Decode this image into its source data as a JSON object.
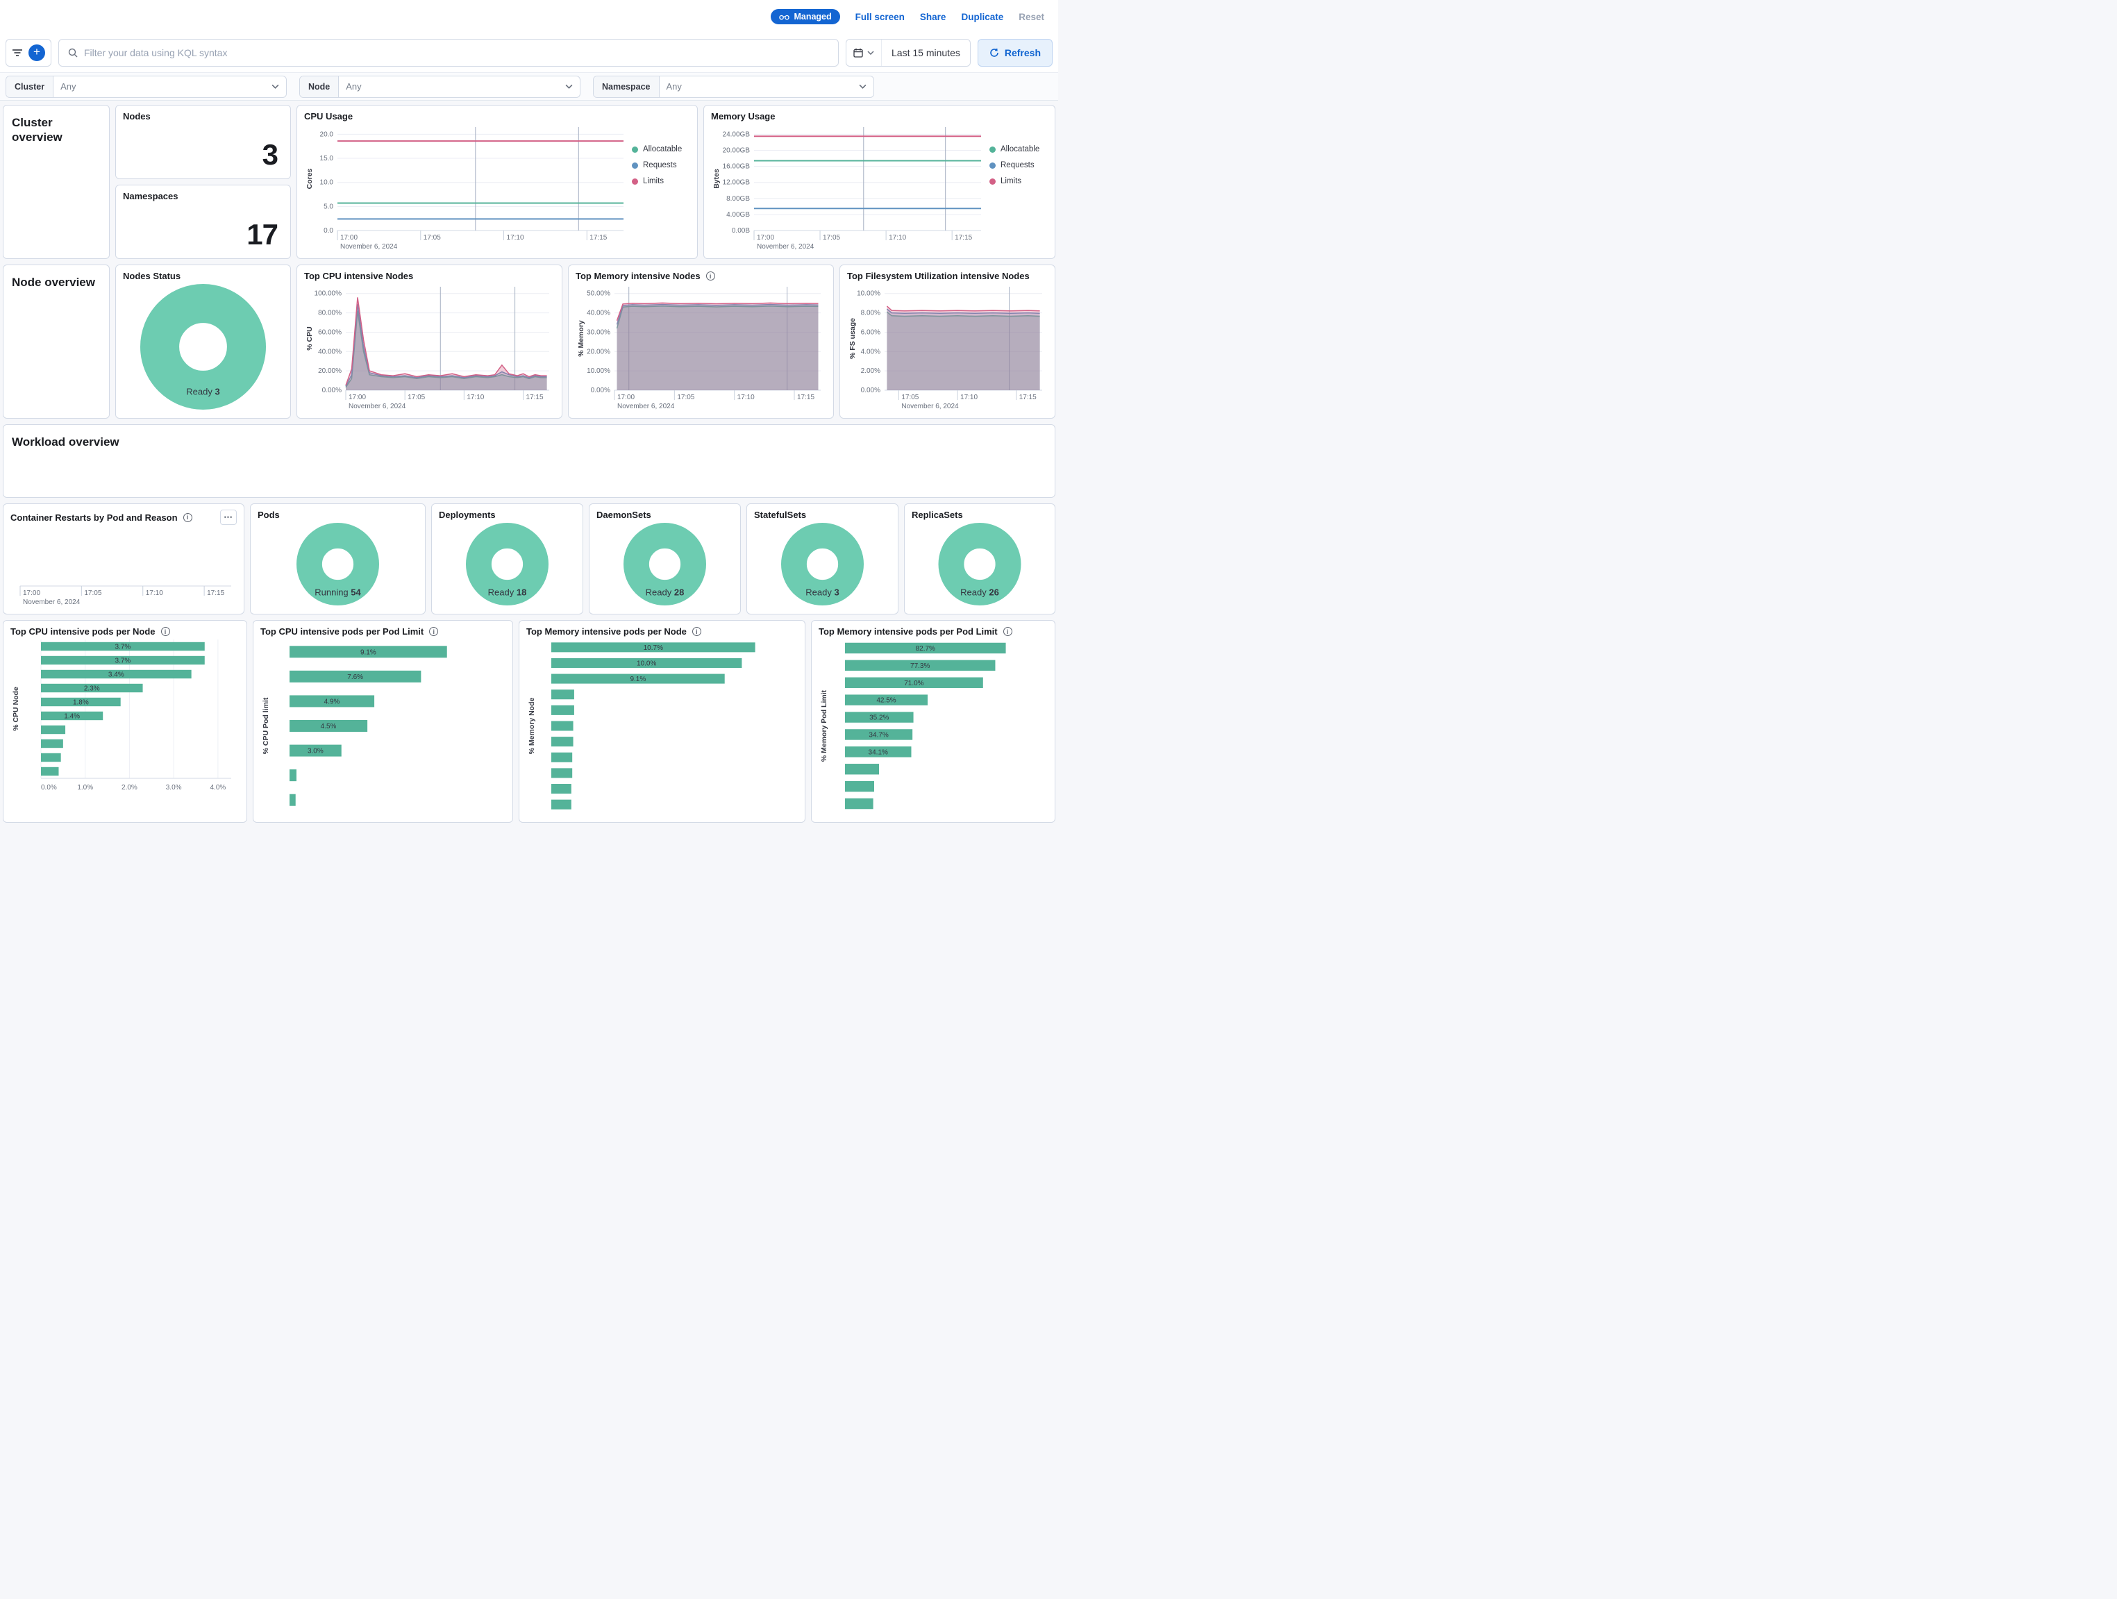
{
  "header": {
    "managed": "Managed",
    "full_screen": "Full screen",
    "share": "Share",
    "duplicate": "Duplicate",
    "reset": "Reset"
  },
  "toolbar": {
    "search_placeholder": "Filter your data using KQL syntax",
    "time_range": "Last 15 minutes",
    "refresh": "Refresh"
  },
  "filters": {
    "cluster_label": "Cluster",
    "cluster_value": "Any",
    "node_label": "Node",
    "node_value": "Any",
    "namespace_label": "Namespace",
    "namespace_value": "Any"
  },
  "panels": {
    "cluster_overview_title": "Cluster overview",
    "node_overview_title": "Node overview",
    "workload_overview_title": "Workload overview",
    "nodes": {
      "title": "Nodes",
      "value": "3"
    },
    "namespaces": {
      "title": "Namespaces",
      "value": "17"
    },
    "cpu_usage_title": "CPU Usage",
    "memory_usage_title": "Memory Usage",
    "nodes_status_title": "Nodes Status",
    "top_cpu_nodes_title": "Top CPU intensive Nodes",
    "top_memory_nodes_title": "Top Memory intensive Nodes",
    "top_fs_nodes_title": "Top Filesystem Utilization intensive Nodes",
    "container_restarts_title": "Container Restarts by Pod and Reason",
    "pods_title": "Pods",
    "deployments_title": "Deployments",
    "daemonsets_title": "DaemonSets",
    "statefulsets_title": "StatefulSets",
    "replicasets_title": "ReplicaSets",
    "top_cpu_pods_node_title": "Top CPU intensive pods per Node",
    "top_cpu_pods_limit_title": "Top CPU intensive pods per Pod Limit",
    "top_mem_pods_node_title": "Top Memory intensive pods per Node",
    "top_mem_pods_limit_title": "Top Memory intensive pods per Pod Limit"
  },
  "colors": {
    "accent_blue": "#1365D2",
    "donut_green": "#6DCCB1",
    "bar_green": "#54B399",
    "series_green": "#54B399",
    "series_blue": "#6092C0",
    "series_pink": "#D36086"
  },
  "chart_data": {
    "cpu_usage": {
      "type": "line",
      "ylabel": "Cores",
      "mleft": 48,
      "yticks": [
        0,
        5,
        10,
        15,
        20
      ],
      "ytick_labels": [
        "0.0",
        "5.0",
        "10.0",
        "15.0",
        "20.0"
      ],
      "ylim": [
        0,
        21.5
      ],
      "xlim": [
        0,
        17.2
      ],
      "xticks": [
        0,
        5,
        10,
        15
      ],
      "xtick_labels": [
        "17:00",
        "17:05",
        "17:10",
        "17:15"
      ],
      "date_label": "November 6, 2024",
      "vlines": [
        8.3,
        14.5
      ],
      "series": [
        {
          "name": "Allocatable",
          "color": "#54B399",
          "value": 5.7
        },
        {
          "name": "Requests",
          "color": "#6092C0",
          "value": 2.4
        },
        {
          "name": "Limits",
          "color": "#D36086",
          "value": 18.6
        }
      ]
    },
    "memory_usage": {
      "type": "line",
      "ylabel": "Bytes",
      "mleft": 62,
      "yticks": [
        0,
        4,
        8,
        12,
        16,
        20,
        24
      ],
      "ytick_labels": [
        "0.00B",
        "4.00GB",
        "8.00GB",
        "12.00GB",
        "16.00GB",
        "20.00GB",
        "24.00GB"
      ],
      "ylim": [
        0,
        25.8
      ],
      "xlim": [
        0,
        17.2
      ],
      "xticks": [
        0,
        5,
        10,
        15
      ],
      "xtick_labels": [
        "17:00",
        "17:05",
        "17:10",
        "17:15"
      ],
      "date_label": "November 6, 2024",
      "vlines": [
        8.3,
        14.5
      ],
      "series": [
        {
          "name": "Allocatable",
          "color": "#54B399",
          "value": 17.4
        },
        {
          "name": "Requests",
          "color": "#6092C0",
          "value": 5.5
        },
        {
          "name": "Limits",
          "color": "#D36086",
          "value": 23.5
        }
      ]
    },
    "top_cpu_nodes": {
      "type": "area",
      "ylabel": "% CPU",
      "mleft": 60,
      "yticks": [
        0,
        20,
        40,
        60,
        80,
        100
      ],
      "ytick_labels": [
        "0.00%",
        "20.00%",
        "40.00%",
        "60.00%",
        "80.00%",
        "100.00%"
      ],
      "ylim": [
        0,
        107
      ],
      "xlim": [
        0,
        17.2
      ],
      "xticks": [
        0,
        5,
        10,
        15
      ],
      "xtick_labels": [
        "17:00",
        "17:05",
        "17:10",
        "17:15"
      ],
      "date_label": "November 6, 2024",
      "vlines": [
        8.0,
        14.3
      ],
      "area": true,
      "series": [
        {
          "color": "#54B399",
          "x": [
            0,
            0.5,
            1,
            1.5,
            2,
            3,
            4,
            5,
            6,
            7,
            8,
            9,
            10,
            11,
            12,
            12.6,
            13.2,
            13.8,
            14.5,
            15,
            15.5,
            16,
            16.5,
            17
          ],
          "y": [
            3,
            12,
            82,
            40,
            16,
            14,
            13,
            14,
            12,
            14,
            13,
            14,
            12,
            14,
            13,
            14,
            16,
            14,
            13,
            14,
            12,
            14,
            13,
            13
          ]
        },
        {
          "color": "#6092C0",
          "x": [
            0,
            0.5,
            1,
            1.5,
            2,
            3,
            4,
            5,
            6,
            7,
            8,
            9,
            10,
            11,
            12,
            12.6,
            13.2,
            13.8,
            14.5,
            15,
            15.5,
            16,
            16.5,
            17
          ],
          "y": [
            4,
            16,
            89,
            45,
            18,
            15,
            14,
            15,
            13,
            15,
            14,
            15,
            13,
            15,
            14,
            15,
            19,
            16,
            14,
            15,
            13,
            15,
            14,
            14
          ]
        },
        {
          "color": "#D36086",
          "x": [
            0,
            0.5,
            1,
            1.5,
            2,
            3,
            4,
            5,
            6,
            7,
            8,
            9,
            10,
            11,
            12,
            12.6,
            13.2,
            13.8,
            14.5,
            15,
            15.5,
            16,
            16.5,
            17
          ],
          "y": [
            5,
            22,
            96,
            52,
            20,
            16,
            15,
            17,
            14,
            16,
            15,
            17,
            14,
            16,
            15,
            16,
            26,
            17,
            15,
            17,
            14,
            16,
            15,
            15
          ]
        }
      ]
    },
    "top_memory_nodes": {
      "type": "area",
      "ylabel": "% Memory",
      "mleft": 56,
      "yticks": [
        0,
        10,
        20,
        30,
        40,
        50
      ],
      "ytick_labels": [
        "0.00%",
        "10.00%",
        "20.00%",
        "30.00%",
        "40.00%",
        "50.00%"
      ],
      "ylim": [
        0,
        53.5
      ],
      "xlim": [
        0,
        17.2
      ],
      "xticks": [
        0,
        5,
        10,
        15
      ],
      "xtick_labels": [
        "17:00",
        "17:05",
        "17:10",
        "17:15"
      ],
      "date_label": "November 6, 2024",
      "vlines": [
        1.2,
        14.4
      ],
      "area": true,
      "series": [
        {
          "color": "#54B399",
          "x": [
            0.2,
            0.7,
            1.5,
            2.5,
            4,
            5.5,
            7,
            8.5,
            10,
            11.5,
            13,
            14.5,
            16,
            17
          ],
          "y": [
            32,
            43,
            43.4,
            43.2,
            43.5,
            43.2,
            43.4,
            43.1,
            43.4,
            43.2,
            43.5,
            43.2,
            43.4,
            43.3
          ]
        },
        {
          "color": "#6092C0",
          "x": [
            0.2,
            0.7,
            1.5,
            2.5,
            4,
            5.5,
            7,
            8.5,
            10,
            11.5,
            13,
            14.5,
            16,
            17
          ],
          "y": [
            34,
            43.8,
            44.2,
            44,
            44.3,
            44,
            44.2,
            43.9,
            44.2,
            44,
            44.3,
            44,
            44.2,
            44.1
          ]
        },
        {
          "color": "#D36086",
          "x": [
            0.2,
            0.7,
            1.5,
            2.5,
            4,
            5.5,
            7,
            8.5,
            10,
            11.5,
            13,
            14.5,
            16,
            17
          ],
          "y": [
            36,
            44.6,
            45,
            44.8,
            45.1,
            44.8,
            45,
            44.7,
            45,
            44.8,
            45.1,
            44.8,
            45,
            44.9
          ]
        }
      ]
    },
    "top_fs_nodes": {
      "type": "area",
      "ylabel": "% FS usage",
      "mleft": 54,
      "yticks": [
        0,
        2,
        4,
        6,
        8,
        10
      ],
      "ytick_labels": [
        "0.00%",
        "2.00%",
        "4.00%",
        "6.00%",
        "8.00%",
        "10.00%"
      ],
      "ylim": [
        0,
        10.7
      ],
      "xlim": [
        3.8,
        17.2
      ],
      "xticks": [
        5,
        10,
        15
      ],
      "xtick_labels": [
        "17:05",
        "17:10",
        "17:15"
      ],
      "date_label": "November 6, 2024",
      "vlines": [
        14.4
      ],
      "area": true,
      "series": [
        {
          "color": "#54B399",
          "x": [
            4,
            4.4,
            5.5,
            7,
            8.5,
            10,
            11.5,
            13,
            14.5,
            16,
            17
          ],
          "y": [
            8.1,
            7.7,
            7.65,
            7.7,
            7.65,
            7.7,
            7.65,
            7.7,
            7.65,
            7.7,
            7.65
          ]
        },
        {
          "color": "#6092C0",
          "x": [
            4,
            4.4,
            5.5,
            7,
            8.5,
            10,
            11.5,
            13,
            14.5,
            16,
            17
          ],
          "y": [
            8.4,
            8.0,
            7.95,
            8.0,
            7.95,
            8.0,
            7.95,
            8.0,
            7.95,
            8.0,
            7.95
          ]
        },
        {
          "color": "#D36086",
          "x": [
            4,
            4.4,
            5.5,
            7,
            8.5,
            10,
            11.5,
            13,
            14.5,
            16,
            17
          ],
          "y": [
            8.7,
            8.25,
            8.2,
            8.25,
            8.2,
            8.25,
            8.2,
            8.25,
            8.2,
            8.25,
            8.2
          ]
        }
      ]
    },
    "container_restarts": {
      "type": "line",
      "mleft": 14,
      "yticks": [],
      "ytick_labels": [],
      "ylim": [
        0,
        1
      ],
      "xlim": [
        0,
        17.2
      ],
      "xticks": [
        0,
        5,
        10,
        15
      ],
      "xtick_labels": [
        "17:00",
        "17:05",
        "17:10",
        "17:15"
      ],
      "date_label": "November 6, 2024",
      "series": []
    },
    "nodes_status": {
      "type": "donut",
      "label": "Ready",
      "value": "3",
      "color": "#6DCCB1"
    },
    "pods": {
      "type": "donut",
      "label": "Running",
      "value": "54",
      "color": "#6DCCB1"
    },
    "deployments": {
      "type": "donut",
      "label": "Ready",
      "value": "18",
      "color": "#6DCCB1"
    },
    "daemonsets": {
      "type": "donut",
      "label": "Ready",
      "value": "28",
      "color": "#6DCCB1"
    },
    "statefulsets": {
      "type": "donut",
      "label": "Ready",
      "value": "3",
      "color": "#6DCCB1"
    },
    "replicasets": {
      "type": "donut",
      "label": "Ready",
      "value": "26",
      "color": "#6DCCB1"
    },
    "top_cpu_pods_node": {
      "type": "bar",
      "ylabel": "% CPU Node",
      "mleft": 44,
      "color": "#54B399",
      "xmax": 4.3,
      "xticks": [
        0,
        1,
        2,
        3,
        4
      ],
      "xtick_labels": [
        "0.0%",
        "1.0%",
        "2.0%",
        "3.0%",
        "4.0%"
      ],
      "values": [
        3.7,
        3.7,
        3.4,
        2.3,
        1.8,
        1.4,
        0.55,
        0.5,
        0.45,
        0.4
      ],
      "labels": [
        "3.7%",
        "3.7%",
        "3.4%",
        "2.3%",
        "1.8%",
        "1.4%",
        "",
        "",
        "",
        ""
      ]
    },
    "top_cpu_pods_limit": {
      "type": "bar",
      "ylabel": "% CPU Pod limit",
      "mleft": 42,
      "color": "#54B399",
      "xmax": 12,
      "values": [
        9.1,
        7.6,
        4.9,
        4.5,
        3.0,
        0.4,
        0.35
      ],
      "labels": [
        "9.1%",
        "7.6%",
        "4.9%",
        "4.5%",
        "3.0%",
        "",
        ""
      ]
    },
    "top_mem_pods_node": {
      "type": "bar",
      "ylabel": "% Memory Node",
      "mleft": 36,
      "color": "#54B399",
      "xmax": 12.5,
      "values": [
        10.7,
        10.0,
        9.1,
        1.2,
        1.2,
        1.15,
        1.15,
        1.1,
        1.1,
        1.05,
        1.05
      ],
      "labels": [
        "10.7%",
        "10.0%",
        "9.1%",
        "",
        "",
        "",
        "",
        "",
        "",
        "",
        ""
      ]
    },
    "top_mem_pods_limit": {
      "type": "bar",
      "ylabel": "% Memory Pod Limit",
      "mleft": 38,
      "color": "#54B399",
      "xmax": 100,
      "values": [
        82.7,
        77.3,
        71.0,
        42.5,
        35.2,
        34.7,
        34.1,
        17.5,
        15.0,
        14.5
      ],
      "labels": [
        "82.7%",
        "77.3%",
        "71.0%",
        "42.5%",
        "35.2%",
        "34.7%",
        "34.1%",
        "",
        "",
        ""
      ]
    }
  }
}
